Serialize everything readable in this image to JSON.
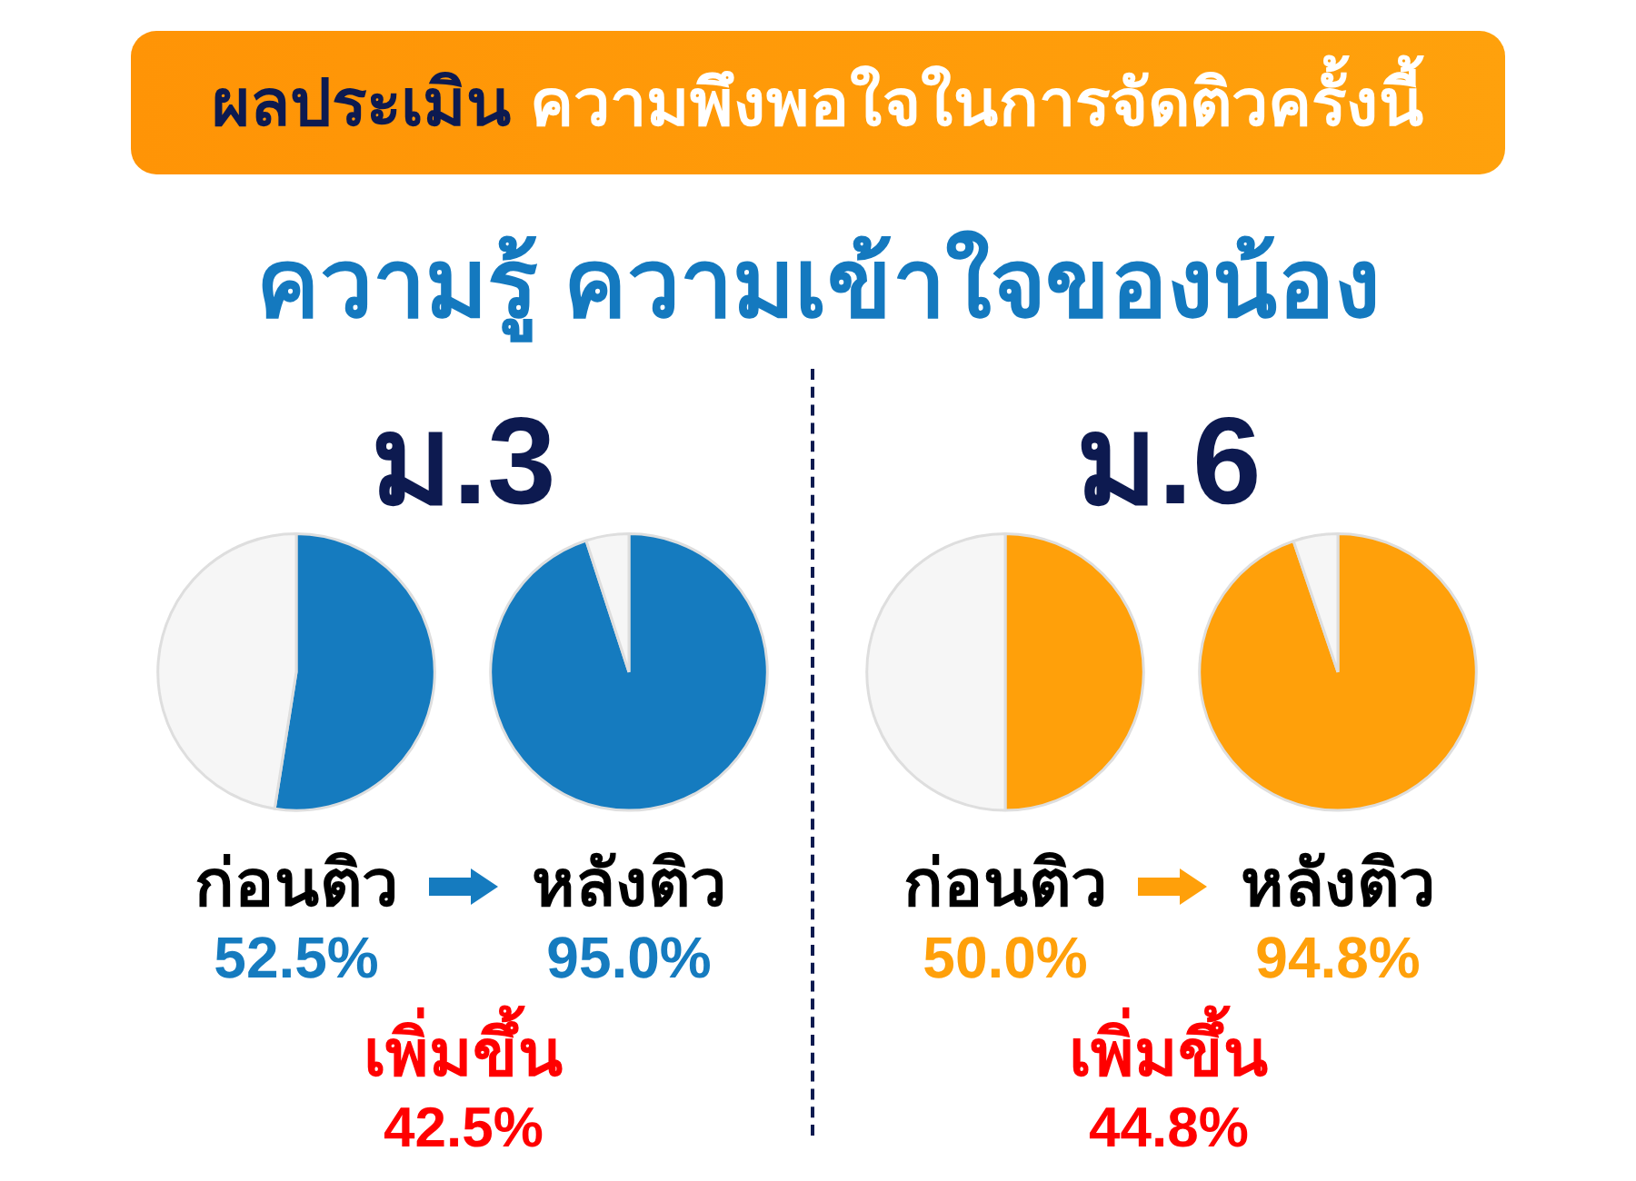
{
  "chart_data": [
    {
      "type": "other",
      "title": "ผลประเมิน ความพึงพอใจในการจัดติวครั้งนี้",
      "subtitle": "ความรู้ ความเข้าใจของน้อง"
    },
    {
      "type": "other",
      "title": "ม.3"
    },
    {
      "type": "pie",
      "title": "ก่อนติว",
      "categories": [
        null,
        null
      ],
      "values": [
        52.5,
        47.5
      ],
      "colors": [
        "#157bbf",
        "#f6f6f6"
      ],
      "value_labels": [
        "52.5%",
        null
      ]
    },
    {
      "type": "pie",
      "title": "หลังติว",
      "categories": [
        null,
        null
      ],
      "values": [
        95.0,
        5.0
      ],
      "colors": [
        "#157bbf",
        "#f6f6f6"
      ],
      "value_labels": [
        "95.0%",
        null
      ]
    },
    {
      "type": "other",
      "title": "เพิ่มขึ้น",
      "annotations": [
        "42.5%"
      ]
    },
    {
      "type": "other",
      "title": "ม.6"
    },
    {
      "type": "pie",
      "title": "ก่อนติว",
      "categories": [
        null,
        null
      ],
      "values": [
        50.0,
        50.0
      ],
      "colors": [
        "#ffa00a",
        "#f6f6f6"
      ],
      "value_labels": [
        "50.0%",
        null
      ]
    },
    {
      "type": "pie",
      "title": "หลังติว",
      "categories": [
        null,
        null
      ],
      "values": [
        94.8,
        5.2
      ],
      "colors": [
        "#ffa00a",
        "#f6f6f6"
      ],
      "value_labels": [
        "94.8%",
        null
      ]
    },
    {
      "type": "other",
      "title": "เพิ่มขึ้น",
      "annotations": [
        "44.8%"
      ]
    }
  ]
}
